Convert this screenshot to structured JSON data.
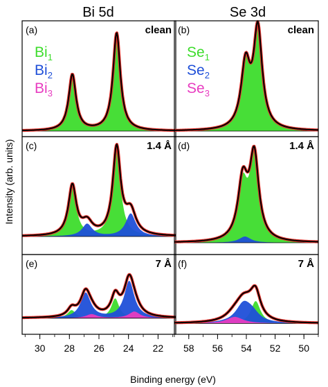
{
  "figure": {
    "y_axis_title": "Intensity (arb. units)",
    "x_axis_title": "Binding energy (eV)",
    "columns": [
      {
        "title": "Bi 5d"
      },
      {
        "title": "Se 3d"
      }
    ]
  },
  "chart_data": [
    {
      "type": "line",
      "id": "a",
      "panel_label": "(a)",
      "condition": "clean",
      "x_ticks": [
        30,
        28,
        26,
        24,
        22
      ],
      "xlim": [
        31.2,
        20.8
      ],
      "x_reversed": true,
      "legend": [
        {
          "base": "Bi",
          "sub": "1",
          "color": "#3ddc2c"
        },
        {
          "base": "Bi",
          "sub": "2",
          "color": "#1f4fd8"
        },
        {
          "base": "Bi",
          "sub": "3",
          "color": "#e83cc0"
        }
      ],
      "components": [
        {
          "name": "Bi1",
          "color": "#3ddc2c",
          "peaks": [
            {
              "center": 27.8,
              "height": 0.55,
              "width": 0.3
            },
            {
              "center": 24.8,
              "height": 0.96,
              "width": 0.3
            }
          ]
        }
      ],
      "background": 0.0
    },
    {
      "type": "line",
      "id": "b",
      "panel_label": "(b)",
      "condition": "clean",
      "x_ticks": [
        58,
        56,
        54,
        52,
        50
      ],
      "xlim": [
        59.0,
        49.0
      ],
      "x_reversed": true,
      "legend": [
        {
          "base": "Se",
          "sub": "1",
          "color": "#3ddc2c"
        },
        {
          "base": "Se",
          "sub": "2",
          "color": "#1f4fd8"
        },
        {
          "base": "Se",
          "sub": "3",
          "color": "#e83cc0"
        }
      ],
      "components": [
        {
          "name": "Se1",
          "color": "#3ddc2c",
          "peaks": [
            {
              "center": 54.05,
              "height": 0.62,
              "width": 0.38
            },
            {
              "center": 53.2,
              "height": 0.97,
              "width": 0.36
            }
          ]
        }
      ],
      "background": 0.0
    },
    {
      "type": "line",
      "id": "c",
      "panel_label": "(c)",
      "condition": "1.4 Å",
      "x_ticks": [
        30,
        28,
        26,
        24,
        22
      ],
      "xlim": [
        31.2,
        20.8
      ],
      "x_reversed": true,
      "components": [
        {
          "name": "Bi1",
          "color": "#3ddc2c",
          "peaks": [
            {
              "center": 27.8,
              "height": 0.48,
              "width": 0.32
            },
            {
              "center": 24.8,
              "height": 0.84,
              "width": 0.32
            }
          ]
        },
        {
          "name": "Bi2",
          "color": "#1f4fd8",
          "peaks": [
            {
              "center": 26.8,
              "height": 0.12,
              "width": 0.42
            },
            {
              "center": 23.85,
              "height": 0.22,
              "width": 0.42
            }
          ]
        }
      ],
      "background": 0.12
    },
    {
      "type": "line",
      "id": "d",
      "panel_label": "(d)",
      "condition": "1.4 Å",
      "x_ticks": [
        58,
        56,
        54,
        52,
        50
      ],
      "xlim": [
        59.0,
        49.0
      ],
      "x_reversed": true,
      "components": [
        {
          "name": "Se1",
          "color": "#3ddc2c",
          "peaks": [
            {
              "center": 54.25,
              "height": 0.52,
              "width": 0.4
            },
            {
              "center": 53.45,
              "height": 0.8,
              "width": 0.38
            }
          ]
        },
        {
          "name": "Se2",
          "color": "#1f4fd8",
          "peaks": [
            {
              "center": 54.1,
              "height": 0.06,
              "width": 0.5
            }
          ]
        }
      ],
      "background": 0.06
    },
    {
      "type": "line",
      "id": "e",
      "panel_label": "(e)",
      "condition": "7 Å",
      "x_ticks": [
        30,
        28,
        26,
        24,
        22
      ],
      "xlim": [
        31.2,
        20.8
      ],
      "x_reversed": true,
      "components": [
        {
          "name": "Bi1",
          "color": "#3ddc2c",
          "peaks": [
            {
              "center": 27.85,
              "height": 0.12,
              "width": 0.32
            },
            {
              "center": 24.9,
              "height": 0.3,
              "width": 0.32
            }
          ]
        },
        {
          "name": "Bi2",
          "color": "#1f4fd8",
          "peaks": [
            {
              "center": 26.9,
              "height": 0.38,
              "width": 0.42
            },
            {
              "center": 23.95,
              "height": 0.56,
              "width": 0.42
            }
          ]
        },
        {
          "name": "Bi3",
          "color": "#e83cc0",
          "peaks": [
            {
              "center": 26.5,
              "height": 0.06,
              "width": 0.45
            },
            {
              "center": 23.6,
              "height": 0.1,
              "width": 0.45
            }
          ]
        }
      ],
      "background": 0.16
    },
    {
      "type": "line",
      "id": "f",
      "panel_label": "(f)",
      "condition": "7 Å",
      "x_ticks": [
        58,
        56,
        54,
        52,
        50
      ],
      "xlim": [
        59.0,
        49.0
      ],
      "x_reversed": true,
      "components": [
        {
          "name": "Se1",
          "color": "#3ddc2c",
          "peaks": [
            {
              "center": 53.35,
              "height": 0.34,
              "width": 0.4
            }
          ]
        },
        {
          "name": "Se2",
          "color": "#1f4fd8",
          "peaks": [
            {
              "center": 54.2,
              "height": 0.28,
              "width": 0.65
            },
            {
              "center": 53.6,
              "height": 0.12,
              "width": 0.6
            }
          ]
        },
        {
          "name": "Se3",
          "color": "#e83cc0",
          "peaks": [
            {
              "center": 54.8,
              "height": 0.1,
              "width": 0.7
            }
          ]
        }
      ],
      "background": 0.08
    }
  ]
}
